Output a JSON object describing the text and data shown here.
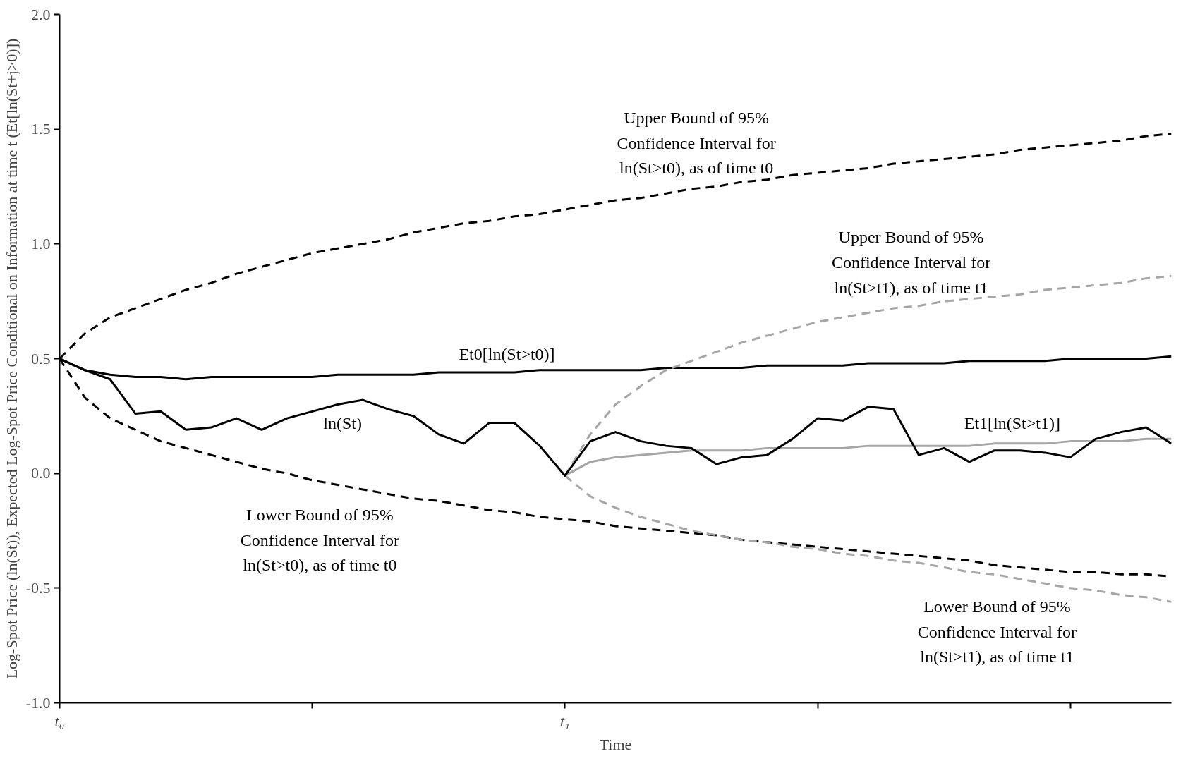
{
  "chart_data": {
    "type": "line",
    "xlabel": "Time",
    "ylabel": "Log-Spot Price (ln(St)), Expected Log-Spot Price Conditional on Information at time t (Et[ln(St+j>0)])",
    "categories": [
      "t₀",
      null,
      null,
      null,
      null,
      null,
      null,
      null,
      null,
      null,
      null,
      null,
      null,
      null,
      null,
      null,
      null,
      null,
      null,
      null,
      "t₁",
      null,
      null,
      null,
      null,
      null,
      null,
      null,
      null,
      null,
      null,
      null,
      null,
      null,
      null,
      null,
      null,
      null,
      null,
      null,
      null,
      null,
      null,
      null,
      null
    ],
    "ylim": [
      -1,
      2
    ],
    "yticks": [
      {
        "value": -1,
        "label": "-1.0"
      },
      {
        "value": -0.5,
        "label": "-0.5"
      },
      {
        "value": 0,
        "label": "0.0"
      },
      {
        "value": 0.5,
        "label": "0.5"
      },
      {
        "value": 1,
        "label": "1.0"
      },
      {
        "value": 1.5,
        "label": "1.5"
      },
      {
        "value": 2,
        "label": "2.0"
      }
    ],
    "grid": false,
    "series": [
      {
        "color": "#000000",
        "line_style": "dashed",
        "values": [
          0.5,
          0.61,
          0.68,
          0.72,
          0.76,
          0.8,
          0.83,
          0.87,
          0.9,
          0.93,
          0.96,
          0.98,
          1.0,
          1.02,
          1.05,
          1.07,
          1.09,
          1.1,
          1.12,
          1.13,
          1.15,
          1.17,
          1.19,
          1.2,
          1.22,
          1.24,
          1.25,
          1.27,
          1.28,
          1.3,
          1.31,
          1.32,
          1.33,
          1.35,
          1.36,
          1.37,
          1.38,
          1.39,
          1.41,
          1.42,
          1.43,
          1.44,
          1.45,
          1.47,
          1.48
        ]
      },
      {
        "color": "#000000",
        "line_style": "dashed",
        "values": [
          0.5,
          0.33,
          0.24,
          0.19,
          0.14,
          0.11,
          0.08,
          0.05,
          0.02,
          0.0,
          -0.03,
          -0.05,
          -0.07,
          -0.09,
          -0.11,
          -0.12,
          -0.14,
          -0.16,
          -0.17,
          -0.19,
          -0.2,
          -0.21,
          -0.23,
          -0.24,
          -0.25,
          -0.26,
          -0.27,
          -0.29,
          -0.3,
          -0.31,
          -0.32,
          -0.33,
          -0.34,
          -0.35,
          -0.36,
          -0.37,
          -0.38,
          -0.4,
          -0.41,
          -0.42,
          -0.43,
          -0.43,
          -0.44,
          -0.44,
          -0.45
        ]
      },
      {
        "color": "#000000",
        "line_style": "solid",
        "values": [
          0.5,
          0.45,
          0.43,
          0.42,
          0.42,
          0.41,
          0.42,
          0.42,
          0.42,
          0.42,
          0.42,
          0.43,
          0.43,
          0.43,
          0.43,
          0.44,
          0.44,
          0.44,
          0.44,
          0.45,
          0.45,
          0.45,
          0.45,
          0.45,
          0.46,
          0.46,
          0.46,
          0.46,
          0.47,
          0.47,
          0.47,
          0.47,
          0.48,
          0.48,
          0.48,
          0.48,
          0.49,
          0.49,
          0.49,
          0.49,
          0.5,
          0.5,
          0.5,
          0.5,
          0.51
        ]
      },
      {
        "color": "#a6a6a6",
        "line_style": "dashed",
        "values": [
          null,
          null,
          null,
          null,
          null,
          null,
          null,
          null,
          null,
          null,
          null,
          null,
          null,
          null,
          null,
          null,
          null,
          null,
          null,
          null,
          -0.01,
          0.17,
          0.3,
          0.38,
          0.45,
          0.49,
          0.53,
          0.57,
          0.6,
          0.63,
          0.66,
          0.68,
          0.7,
          0.72,
          0.73,
          0.75,
          0.76,
          0.77,
          0.78,
          0.8,
          0.81,
          0.82,
          0.83,
          0.85,
          0.86
        ]
      },
      {
        "color": "#a6a6a6",
        "line_style": "dashed",
        "values": [
          null,
          null,
          null,
          null,
          null,
          null,
          null,
          null,
          null,
          null,
          null,
          null,
          null,
          null,
          null,
          null,
          null,
          null,
          null,
          null,
          -0.01,
          -0.1,
          -0.15,
          -0.19,
          -0.22,
          -0.25,
          -0.27,
          -0.29,
          -0.3,
          -0.32,
          -0.33,
          -0.35,
          -0.36,
          -0.38,
          -0.39,
          -0.41,
          -0.43,
          -0.44,
          -0.46,
          -0.48,
          -0.5,
          -0.51,
          -0.53,
          -0.54,
          -0.56
        ]
      },
      {
        "color": "#a6a6a6",
        "line_style": "solid",
        "values": [
          null,
          null,
          null,
          null,
          null,
          null,
          null,
          null,
          null,
          null,
          null,
          null,
          null,
          null,
          null,
          null,
          null,
          null,
          null,
          null,
          -0.01,
          0.05,
          0.07,
          0.08,
          0.09,
          0.1,
          0.1,
          0.1,
          0.11,
          0.11,
          0.11,
          0.11,
          0.12,
          0.12,
          0.12,
          0.12,
          0.12,
          0.13,
          0.13,
          0.13,
          0.14,
          0.14,
          0.14,
          0.15,
          0.15
        ]
      },
      {
        "color": "#000000",
        "line_style": "solid",
        "values": [
          0.5,
          0.45,
          0.41,
          0.26,
          0.27,
          0.19,
          0.2,
          0.24,
          0.19,
          0.24,
          0.27,
          0.3,
          0.32,
          0.28,
          0.25,
          0.17,
          0.13,
          0.22,
          0.22,
          0.12,
          -0.01,
          0.14,
          0.18,
          0.14,
          0.12,
          0.11,
          0.04,
          0.07,
          0.08,
          0.15,
          0.24,
          0.23,
          0.29,
          0.28,
          0.08,
          0.11,
          0.05,
          0.1,
          0.1,
          0.09,
          0.07,
          0.15,
          0.18,
          0.2,
          0.13
        ]
      }
    ],
    "annotations": [
      "Upper Bound of 95%",
      "Confidence Interval for",
      "ln(St>t0), as of time t0",
      "Upper Bound of 95%",
      "Confidence Interval for",
      "ln(St>t1), as of time t1",
      "Et0[ln(St>t0)]",
      "ln(St)",
      "Et1[ln(St>t1)]",
      "Lower Bound of 95%",
      "Confidence Interval for",
      "ln(St>t0), as of time t0",
      "Lower Bound of 95%",
      "Confidence Interval for",
      "ln(St>t1), as of time t1"
    ]
  }
}
